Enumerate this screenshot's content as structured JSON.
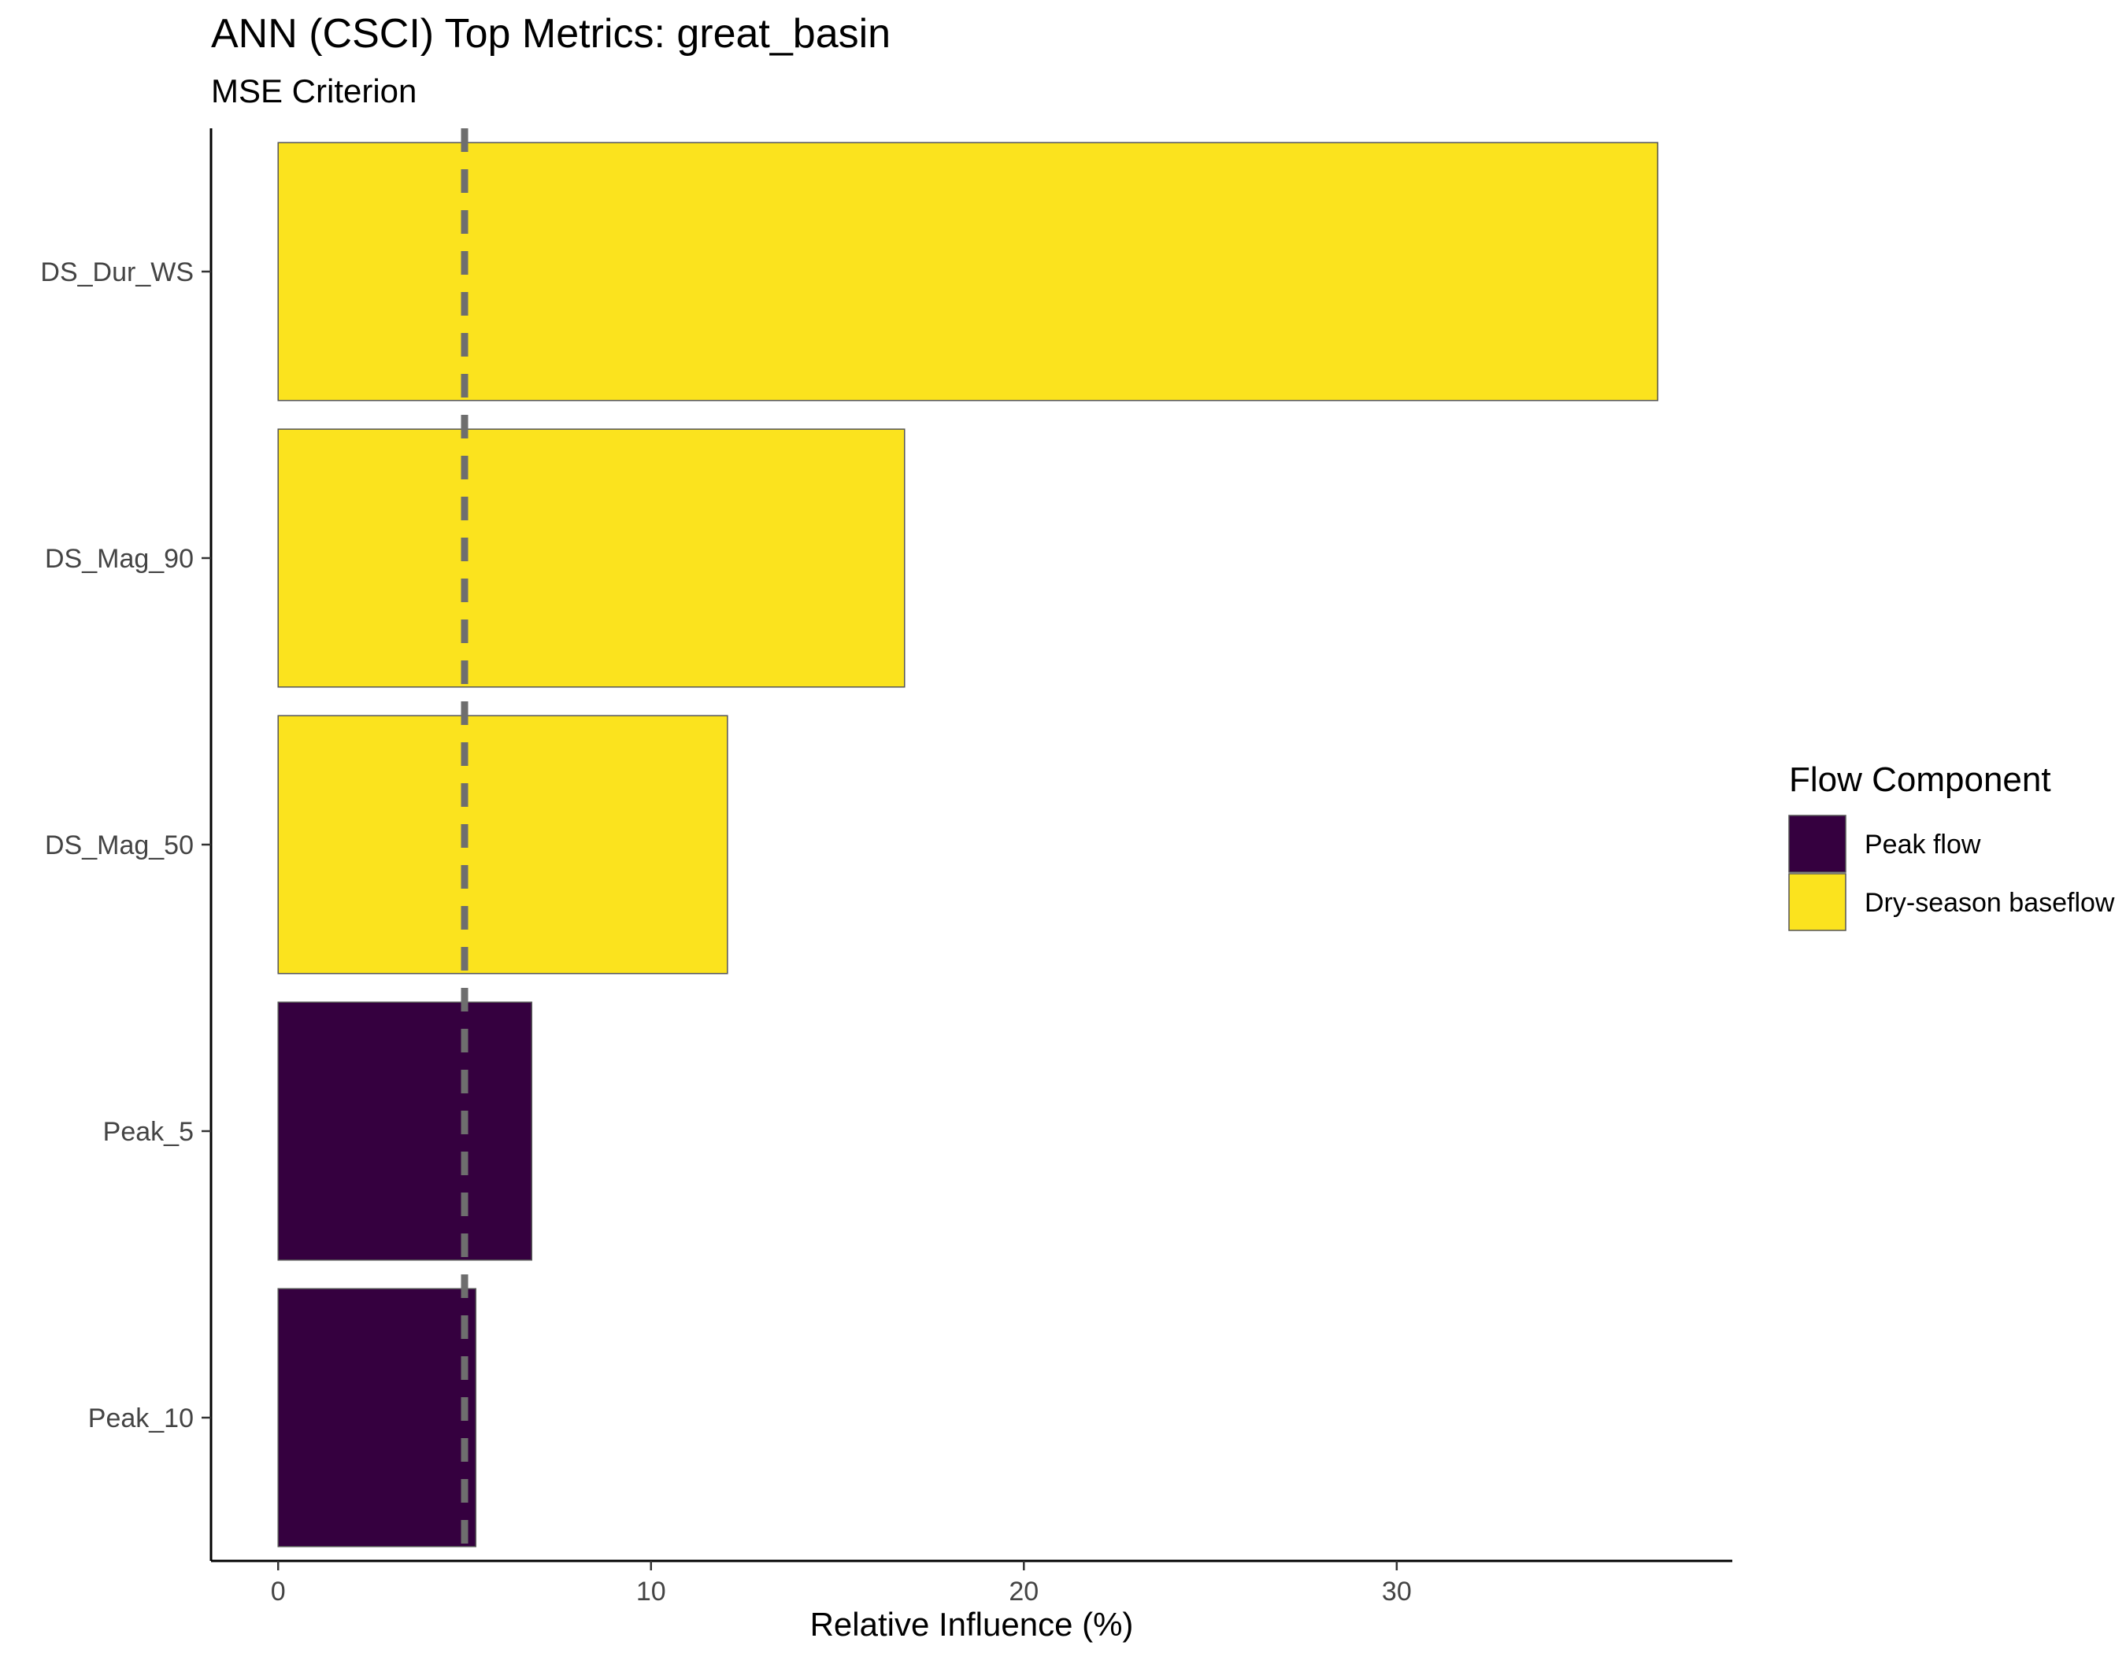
{
  "chart_data": {
    "type": "bar",
    "orientation": "horizontal",
    "title": "ANN (CSCI) Top Metrics: great_basin",
    "subtitle": "MSE Criterion",
    "xlabel": "Relative Influence (%)",
    "ylabel": "",
    "xlim": [
      -1.8,
      39
    ],
    "xticks": [
      0,
      10,
      20,
      30
    ],
    "reference_line": {
      "x": 5,
      "style": "dashed",
      "color": "#6e6e6e"
    },
    "categories": [
      "DS_Dur_WS",
      "DS_Mag_90",
      "DS_Mag_50",
      "Peak_5",
      "Peak_10"
    ],
    "values": [
      37.0,
      16.8,
      12.05,
      6.8,
      5.3
    ],
    "groups": [
      "Dry-season baseflow",
      "Dry-season baseflow",
      "Dry-season baseflow",
      "Peak flow",
      "Peak flow"
    ],
    "legend": {
      "title": "Flow Component",
      "placement": "right",
      "items": [
        {
          "label": "Peak flow",
          "color": "#35003f"
        },
        {
          "label": "Dry-season baseflow",
          "color": "#fbe31e"
        }
      ]
    },
    "grid": false
  }
}
